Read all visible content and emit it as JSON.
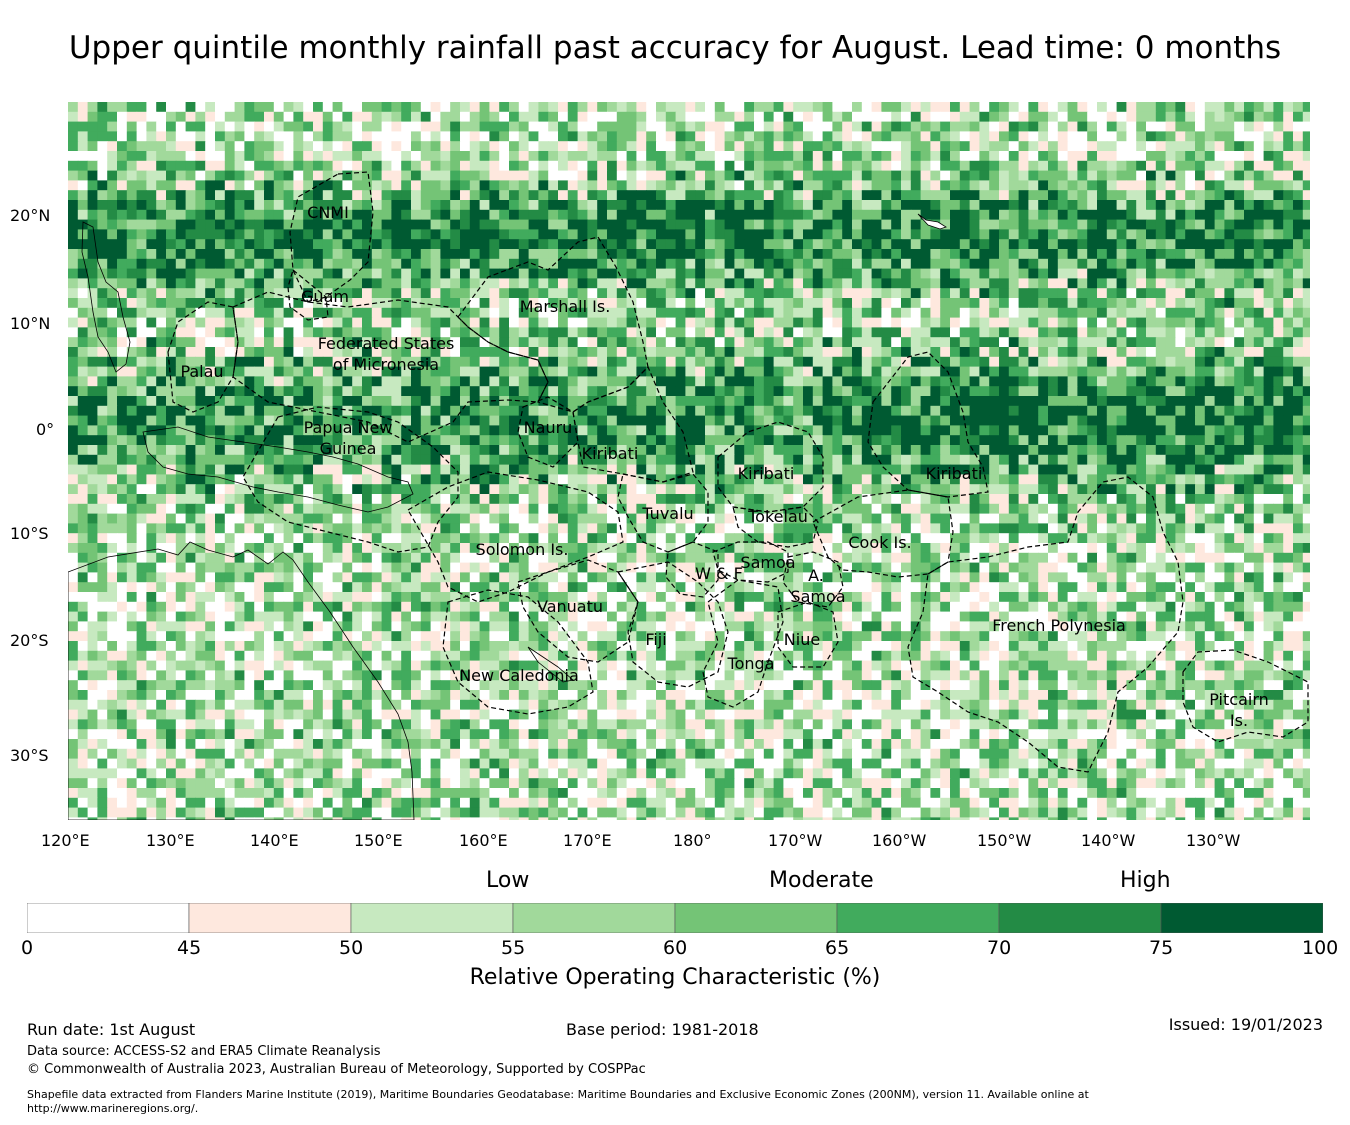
{
  "title": "Upper quintile monthly rainfall past accuracy for August. Lead time: 0 months",
  "map": {
    "lat_labels": [
      "20°N",
      "10°N",
      "0°",
      "10°S",
      "20°S",
      "30°S"
    ],
    "lon_labels": [
      "120°E",
      "130°E",
      "140°E",
      "150°E",
      "160°E",
      "170°E",
      "180°",
      "170°W",
      "160°W",
      "150°W",
      "140°W",
      "130°W"
    ],
    "region_labels": [
      {
        "id": "cnmi",
        "text": "CNMI"
      },
      {
        "id": "guam",
        "text": "Guam"
      },
      {
        "id": "marshall",
        "text": "Marshall Is."
      },
      {
        "id": "fsm1",
        "text": "Federated States"
      },
      {
        "id": "fsm2",
        "text": "of Micronesia"
      },
      {
        "id": "palau",
        "text": "Palau"
      },
      {
        "id": "png1",
        "text": "Papua New"
      },
      {
        "id": "png2",
        "text": "Guinea"
      },
      {
        "id": "nauru",
        "text": "Nauru"
      },
      {
        "id": "kiribati-w",
        "text": "Kiribati"
      },
      {
        "id": "kiribati-c",
        "text": "Kiribati"
      },
      {
        "id": "kiribati-e",
        "text": "Kiribati"
      },
      {
        "id": "tuvalu",
        "text": "Tuvalu"
      },
      {
        "id": "tokelau",
        "text": "Tokelau"
      },
      {
        "id": "cook",
        "text": "Cook Is."
      },
      {
        "id": "solomon",
        "text": "Solomon Is."
      },
      {
        "id": "samoa",
        "text": "Samoa"
      },
      {
        "id": "wf",
        "text": "W & F"
      },
      {
        "id": "asamoa1",
        "text": "A."
      },
      {
        "id": "asamoa2",
        "text": "Samoa"
      },
      {
        "id": "vanuatu",
        "text": "Vanuatu"
      },
      {
        "id": "fiji",
        "text": "Fiji"
      },
      {
        "id": "niue",
        "text": "Niue"
      },
      {
        "id": "tonga",
        "text": "Tonga"
      },
      {
        "id": "frpoly",
        "text": "French Polynesia"
      },
      {
        "id": "newcal",
        "text": "New Caledonia"
      },
      {
        "id": "pitcairn1",
        "text": "Pitcairn"
      },
      {
        "id": "pitcairn2",
        "text": "Is."
      }
    ]
  },
  "legend": {
    "categories": [
      "Low",
      "Moderate",
      "High"
    ],
    "bins": [
      {
        "from": 0,
        "to": 45,
        "color": "#ffffff"
      },
      {
        "from": 45,
        "to": 50,
        "color": "#fee8de"
      },
      {
        "from": 50,
        "to": 55,
        "color": "#c7e9c0"
      },
      {
        "from": 55,
        "to": 60,
        "color": "#a1d99b"
      },
      {
        "from": 60,
        "to": 65,
        "color": "#74c476"
      },
      {
        "from": 65,
        "to": 70,
        "color": "#41ab5d"
      },
      {
        "from": 70,
        "to": 75,
        "color": "#238b45"
      },
      {
        "from": 75,
        "to": 100,
        "color": "#005a32"
      }
    ],
    "tick_labels": [
      "0",
      "45",
      "50",
      "55",
      "60",
      "65",
      "70",
      "75",
      "100"
    ],
    "axis_title": "Relative Operating Characteristic (%)"
  },
  "footer": {
    "run_date": "Run date: 1st August",
    "base_period": "Base period: 1981-2018",
    "issued": "Issued: 19/01/2023",
    "data_source": "Data source: ACCESS-S2 and ERA5 Climate Reanalysis",
    "copyright": "© Commonwealth of Australia 2023, Australian Bureau of Meteorology, Supported by COSPPac",
    "shapefile_line1": "Shapefile data extracted from Flanders Marine Institute (2019), Maritime Boundaries Geodatabase: Maritime Boundaries and Exclusive Economic Zones (200NM), version 11. Available online at",
    "shapefile_line2": "http://www.marineregions.org/."
  }
}
